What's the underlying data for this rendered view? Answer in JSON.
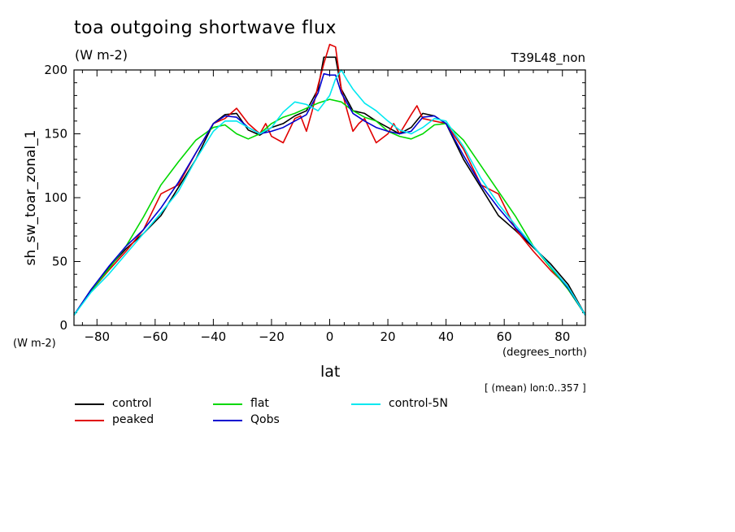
{
  "chart_data": {
    "type": "line",
    "title": "toa outgoing shortwave flux",
    "units_label": "(W m-2)",
    "run_label": "T39L48_non",
    "ylabel": "sh_sw_toar_zonal_1",
    "y_units_label": "(W m-2)",
    "xlabel": "lat",
    "x_units_label": "(degrees_north)",
    "footnote": "[ (mean) lon:0..357 ]",
    "xlim": [
      -87.9,
      87.9
    ],
    "ylim": [
      0,
      200
    ],
    "x_ticks": [
      -80,
      -60,
      -40,
      -20,
      0,
      20,
      40,
      60,
      80
    ],
    "x_tick_labels": [
      "−80",
      "−60",
      "−40",
      "−20",
      "0",
      "20",
      "40",
      "60",
      "80"
    ],
    "y_ticks": [
      0,
      50,
      100,
      150,
      200
    ],
    "y_tick_labels": [
      "0",
      "50",
      "100",
      "150",
      "200"
    ],
    "legend_position": "bottom",
    "series": [
      {
        "name": "control",
        "color": "#000000",
        "x": [
          -87.9,
          -82,
          -76,
          -70,
          -64,
          -58,
          -52,
          -46,
          -40,
          -36,
          -32,
          -28,
          -24,
          -20,
          -16,
          -12,
          -8,
          -4,
          -2,
          0,
          2,
          4,
          8,
          12,
          16,
          20,
          24,
          28,
          32,
          36,
          40,
          46,
          52,
          58,
          64,
          70,
          76,
          82,
          87.9
        ],
        "y": [
          8,
          28,
          45,
          60,
          72,
          86,
          108,
          130,
          158,
          165,
          166,
          153,
          149,
          155,
          158,
          164,
          168,
          185,
          210,
          210,
          210,
          185,
          168,
          166,
          160,
          155,
          150,
          155,
          166,
          164,
          158,
          130,
          108,
          86,
          74,
          61,
          48,
          32,
          8
        ]
      },
      {
        "name": "peaked",
        "color": "#e00000",
        "x": [
          -87.9,
          -82,
          -76,
          -70,
          -64,
          -58,
          -52,
          -46,
          -40,
          -36,
          -32,
          -30,
          -28,
          -24,
          -22,
          -20,
          -16,
          -12,
          -10,
          -8,
          -6,
          -4,
          -2,
          0,
          2,
          4,
          6,
          8,
          10,
          12,
          16,
          20,
          22,
          24,
          28,
          30,
          32,
          36,
          40,
          46,
          52,
          58,
          64,
          70,
          76,
          82,
          87.9
        ],
        "y": [
          8,
          27,
          43,
          58,
          75,
          103,
          110,
          135,
          158,
          162,
          170,
          164,
          158,
          150,
          158,
          148,
          143,
          162,
          164,
          152,
          168,
          188,
          205,
          220,
          218,
          185,
          168,
          152,
          158,
          162,
          143,
          150,
          158,
          150,
          165,
          172,
          162,
          160,
          158,
          138,
          110,
          103,
          75,
          58,
          43,
          30,
          8
        ]
      },
      {
        "name": "flat",
        "color": "#00d800",
        "x": [
          -87.9,
          -82,
          -76,
          -70,
          -64,
          -58,
          -52,
          -46,
          -40,
          -36,
          -32,
          -28,
          -24,
          -20,
          -16,
          -12,
          -8,
          -4,
          0,
          4,
          8,
          12,
          16,
          20,
          24,
          28,
          32,
          36,
          40,
          46,
          52,
          58,
          64,
          70,
          76,
          82,
          87.9
        ],
        "y": [
          8,
          27,
          44,
          62,
          85,
          110,
          128,
          145,
          155,
          157,
          150,
          146,
          150,
          158,
          163,
          166,
          170,
          174,
          177,
          175,
          168,
          163,
          160,
          152,
          148,
          146,
          150,
          157,
          158,
          145,
          125,
          105,
          85,
          62,
          45,
          28,
          8
        ]
      },
      {
        "name": "Qobs",
        "color": "#0000d0",
        "x": [
          -87.9,
          -82,
          -76,
          -70,
          -64,
          -58,
          -52,
          -46,
          -40,
          -36,
          -32,
          -28,
          -24,
          -20,
          -16,
          -12,
          -8,
          -4,
          -2,
          0,
          2,
          4,
          8,
          12,
          16,
          20,
          24,
          28,
          32,
          36,
          40,
          46,
          52,
          58,
          64,
          70,
          76,
          82,
          87.9
        ],
        "y": [
          8,
          28,
          46,
          62,
          75,
          92,
          112,
          135,
          158,
          164,
          163,
          155,
          150,
          152,
          155,
          160,
          165,
          182,
          197,
          196,
          196,
          182,
          166,
          160,
          155,
          152,
          150,
          152,
          163,
          164,
          158,
          133,
          110,
          92,
          76,
          62,
          46,
          29,
          8
        ]
      },
      {
        "name": "control-5N",
        "color": "#00e8f0",
        "x": [
          -87.9,
          -82,
          -76,
          -70,
          -64,
          -58,
          -52,
          -46,
          -40,
          -36,
          -32,
          -28,
          -24,
          -20,
          -16,
          -12,
          -8,
          -4,
          0,
          2,
          4,
          6,
          8,
          12,
          16,
          20,
          24,
          28,
          32,
          36,
          40,
          46,
          52,
          58,
          64,
          70,
          76,
          82,
          87.9
        ],
        "y": [
          8,
          26,
          40,
          56,
          72,
          88,
          105,
          130,
          152,
          160,
          160,
          155,
          150,
          155,
          167,
          175,
          173,
          168,
          180,
          193,
          200,
          192,
          185,
          174,
          168,
          160,
          153,
          150,
          155,
          162,
          160,
          140,
          115,
          95,
          78,
          62,
          46,
          30,
          8
        ]
      }
    ]
  }
}
